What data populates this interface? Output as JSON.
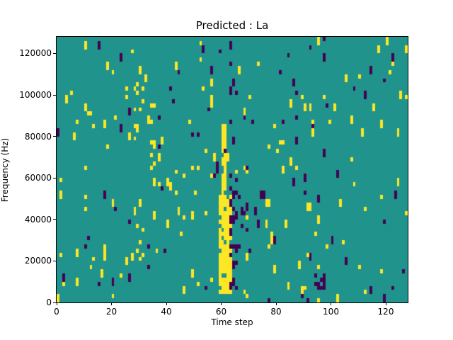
{
  "figure": {
    "background": "#ffffff"
  },
  "chart_data": {
    "type": "heatmap",
    "title": "Predicted : La",
    "xlabel": "Time step",
    "ylabel": "Frequency (Hz)",
    "xlim": [
      0,
      128
    ],
    "ylim": [
      0,
      128000
    ],
    "xticks": [
      0,
      20,
      40,
      60,
      80,
      100,
      120
    ],
    "yticks": [
      0,
      20000,
      40000,
      60000,
      80000,
      100000,
      120000
    ],
    "grid": {
      "cols": 128,
      "rows": 64
    },
    "colors": {
      "background": "#20938c",
      "yellow": "#fde725",
      "purple": "#440154",
      "frame": "#000000"
    },
    "noise": {
      "yellow_density": 0.016,
      "purple_density": 0.012,
      "tall_fraction": 0.45
    },
    "features": [
      {
        "name": "main-yellow-band-low",
        "color": "yellow",
        "t": [
          59,
          64
        ],
        "f": [
          4000,
          52000
        ],
        "density": 0.9
      },
      {
        "name": "main-yellow-band-high",
        "color": "yellow",
        "t": [
          60,
          62
        ],
        "f": [
          52000,
          86000
        ],
        "density": 0.8
      },
      {
        "name": "purple-edge-right-of-band",
        "color": "purple",
        "t": [
          63,
          66
        ],
        "f": [
          6000,
          62000
        ],
        "density": 0.4
      },
      {
        "name": "purple-sparse-tail",
        "color": "purple",
        "t": [
          66,
          71
        ],
        "f": [
          16000,
          56000
        ],
        "density": 0.12
      },
      {
        "name": "purple-blob-low-right",
        "color": "purple",
        "t": [
          94,
          98
        ],
        "f": [
          6000,
          14000
        ],
        "density": 0.55
      },
      {
        "name": "yellow-cluster-left-column",
        "color": "yellow",
        "t": [
          28,
          32
        ],
        "f": [
          20000,
          112000
        ],
        "density": 0.08
      },
      {
        "name": "yellow-cluster-mid",
        "color": "yellow",
        "t": [
          34,
          38
        ],
        "f": [
          56000,
          92000
        ],
        "density": 0.1
      },
      {
        "name": "yellow-cluster-low-left",
        "color": "yellow",
        "t": [
          8,
          14
        ],
        "f": [
          16000,
          52000
        ],
        "density": 0.06
      }
    ],
    "legend": {
      "visible": false
    }
  }
}
